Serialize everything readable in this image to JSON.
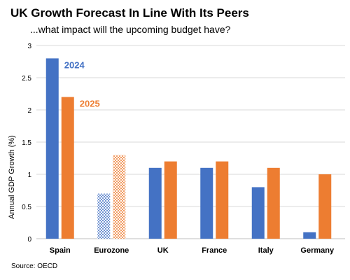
{
  "chart_data": {
    "type": "bar",
    "title": "UK Growth Forecast In Line With Its Peers",
    "subtitle": "...what impact will the upcoming budget have?",
    "ylabel": "Annual GDP Growth (%)",
    "xlabel": "",
    "ylim": [
      0,
      3
    ],
    "yticks": [
      "0",
      "0.5",
      "1",
      "1.5",
      "2",
      "2.5",
      "3"
    ],
    "grid": true,
    "categories": [
      "Spain",
      "Eurozone",
      "UK",
      "France",
      "Italy",
      "Germany"
    ],
    "series": [
      {
        "name": "2024",
        "color": "#4472C4",
        "values": [
          2.8,
          0.7,
          1.1,
          1.1,
          0.8,
          0.1
        ]
      },
      {
        "name": "2025",
        "color": "#ED7D31",
        "values": [
          2.2,
          1.3,
          1.2,
          1.2,
          1.1,
          1.0
        ]
      }
    ],
    "patterned_category": "Eurozone",
    "source": "Source: OECD"
  }
}
